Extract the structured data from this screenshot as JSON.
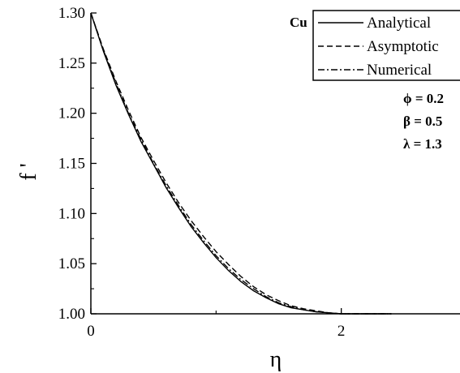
{
  "chart_data": {
    "type": "line",
    "xlabel": "η",
    "ylabel": "f '",
    "xlim": [
      0,
      3
    ],
    "ylim": [
      1.0,
      1.3
    ],
    "x_ticks": [
      {
        "value": 0,
        "label": "0"
      },
      {
        "value": 2,
        "label": "2"
      }
    ],
    "y_ticks": [
      {
        "value": 1.0,
        "label": "1.00"
      },
      {
        "value": 1.05,
        "label": "1.05"
      },
      {
        "value": 1.1,
        "label": "1.10"
      },
      {
        "value": 1.15,
        "label": "1.15"
      },
      {
        "value": 1.2,
        "label": "1.20"
      },
      {
        "value": 1.25,
        "label": "1.25"
      },
      {
        "value": 1.3,
        "label": "1.30"
      }
    ],
    "grid": false,
    "legend_position": "top-right",
    "material_label": "Cu",
    "parameters": [
      "ϕ = 0.2",
      "β = 0.5",
      "λ = 1.3"
    ],
    "series": [
      {
        "name": "Analytical",
        "style": "solid",
        "x": [
          0,
          0.1,
          0.2,
          0.3,
          0.4,
          0.5,
          0.6,
          0.7,
          0.8,
          0.9,
          1.0,
          1.1,
          1.2,
          1.3,
          1.4,
          1.5,
          1.6,
          1.7,
          1.8,
          1.9,
          2.0,
          2.1,
          2.2,
          2.3,
          2.4
        ],
        "y": [
          1.3,
          1.262,
          1.228,
          1.199,
          1.172,
          1.149,
          1.126,
          1.106,
          1.087,
          1.071,
          1.056,
          1.043,
          1.032,
          1.023,
          1.016,
          1.01,
          1.006,
          1.004,
          1.002,
          1.001,
          1.0,
          1.0,
          1.0,
          1.0,
          1.0
        ]
      },
      {
        "name": "Asymptotic",
        "style": "dashed",
        "x": [
          0,
          0.1,
          0.2,
          0.3,
          0.4,
          0.5,
          0.6,
          0.7,
          0.8,
          0.9,
          1.0,
          1.1,
          1.2,
          1.3,
          1.4,
          1.5,
          1.6,
          1.7,
          1.8,
          1.9,
          2.0,
          2.1,
          2.2,
          2.3,
          2.4
        ],
        "y": [
          1.3,
          1.264,
          1.232,
          1.203,
          1.176,
          1.153,
          1.131,
          1.111,
          1.093,
          1.077,
          1.062,
          1.049,
          1.037,
          1.027,
          1.019,
          1.013,
          1.008,
          1.005,
          1.003,
          1.001,
          1.0,
          1.0,
          1.0,
          1.0,
          1.0
        ]
      },
      {
        "name": "Numerical",
        "style": "dashdot",
        "x": [
          0,
          0.1,
          0.2,
          0.3,
          0.4,
          0.5,
          0.6,
          0.7,
          0.8,
          0.9,
          1.0,
          1.1,
          1.2,
          1.3,
          1.4,
          1.5,
          1.6,
          1.7,
          1.8,
          1.9,
          2.0,
          2.1,
          2.2,
          2.3,
          2.4
        ],
        "y": [
          1.3,
          1.263,
          1.23,
          1.2,
          1.174,
          1.15,
          1.128,
          1.108,
          1.089,
          1.073,
          1.058,
          1.045,
          1.034,
          1.025,
          1.017,
          1.011,
          1.007,
          1.004,
          1.002,
          1.001,
          1.0,
          1.0,
          1.0,
          1.0,
          1.0
        ]
      }
    ]
  }
}
